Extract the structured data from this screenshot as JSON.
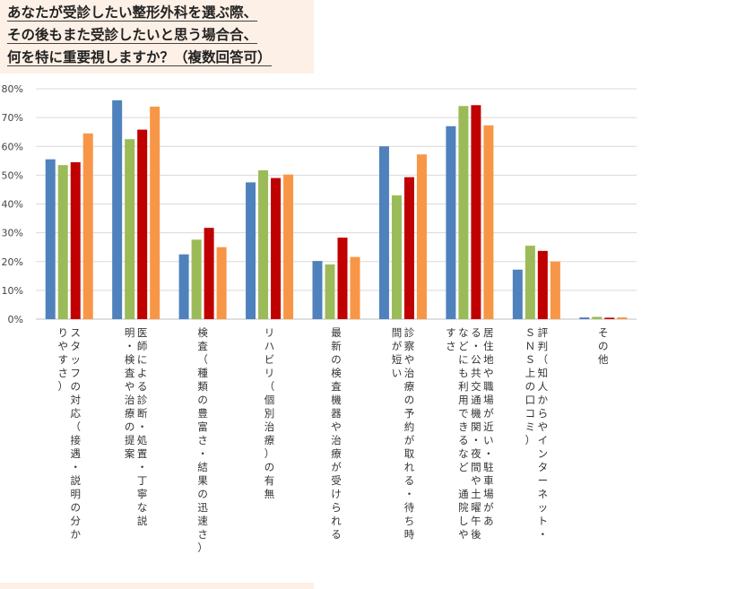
{
  "title_lines": [
    "あなたが受診したい整形外科を選ぶ際、",
    "その後もまた受診したいと思う場合合、",
    "何を特に重要視しますか？（複数回答可）"
  ],
  "chart_data": {
    "type": "bar",
    "ylim": [
      0,
      80
    ],
    "yticks": [
      "0%",
      "10%",
      "20%",
      "30%",
      "40%",
      "50%",
      "60%",
      "70%",
      "80%"
    ],
    "grid": true,
    "legend": "none",
    "colors": [
      "#4f81bd",
      "#9bbb59",
      "#c00000",
      "#f79646"
    ],
    "categories": [
      [
        "スタッフの対応（接遇・説明の分か",
        "りやすさ）"
      ],
      [
        "医師による診断・処置・丁寧な説",
        "明・検査や治療の提案"
      ],
      [
        "検査（種類の豊富さ・結果の迅速さ）"
      ],
      [
        "リハビリ（個別治療）の有無"
      ],
      [
        "最新の検査機器や治療が受けられる"
      ],
      [
        "診察や治療の予約が取れる・待ち時",
        "間が短い"
      ],
      [
        "居住地や職場が近い・駐車場があ",
        "る・公共交通機関・夜間や土曜午後",
        "などにも利用できるなど　通院しや",
        "すさ"
      ],
      [
        "評判（知人からやインターネット・",
        "ＳＮＳ上の口コミ）"
      ],
      [
        "その他"
      ]
    ],
    "series": [
      {
        "values": [
          55.5,
          76.0,
          22.5,
          47.5,
          20.2,
          60.0,
          67.0,
          17.2,
          0.6
        ]
      },
      {
        "values": [
          53.5,
          62.5,
          27.6,
          51.7,
          19.0,
          43.0,
          74.0,
          25.5,
          0.8
        ]
      },
      {
        "values": [
          54.5,
          65.8,
          31.7,
          49.0,
          28.3,
          49.3,
          74.3,
          23.7,
          0.5
        ]
      },
      {
        "values": [
          64.5,
          73.8,
          25.0,
          50.2,
          21.6,
          57.2,
          67.3,
          20.0,
          0.6
        ]
      }
    ]
  }
}
